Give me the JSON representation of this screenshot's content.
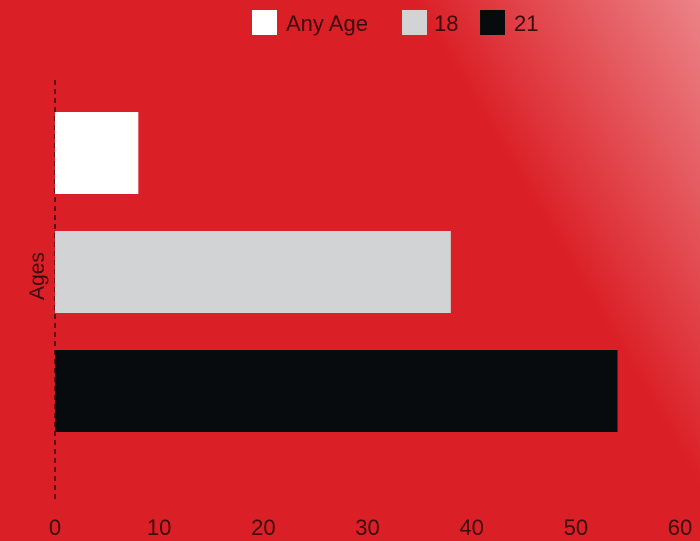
{
  "chart_data": {
    "type": "bar",
    "orientation": "horizontal",
    "title": "",
    "ylabel": "Ages",
    "xlabel": "",
    "series": [
      {
        "name": "Any Age",
        "value": 8,
        "color": "#ffffff"
      },
      {
        "name": "18",
        "value": 38,
        "color": "#d2d3d5"
      },
      {
        "name": "21",
        "value": 54,
        "color": "#070b0d"
      }
    ],
    "xlim": [
      0,
      60
    ],
    "xticks": [
      0,
      10,
      20,
      30,
      40,
      50,
      60
    ],
    "legend_position": "top",
    "grid": false,
    "background_color": "#db1f26"
  }
}
